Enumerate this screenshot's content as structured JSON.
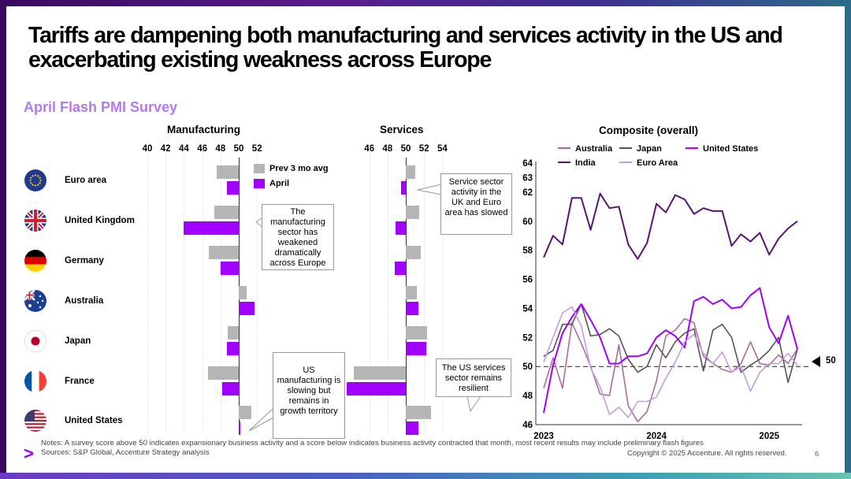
{
  "title": "Tariffs are dampening both manufacturing and services activity in the US and exacerbating existing weakness across Europe",
  "subtitle": "April Flash PMI Survey",
  "panels": {
    "manufacturing": "Manufacturing",
    "services": "Services",
    "composite": "Composite (overall)"
  },
  "legend": {
    "prev": "Prev 3 mo avg",
    "april": "April"
  },
  "colors": {
    "prev": "#b5b5b5",
    "april": "#a100ff",
    "brand": "#a100ff"
  },
  "countries": [
    {
      "name": "Euro area",
      "flag": "eu-flag-icon"
    },
    {
      "name": "United Kingdom",
      "flag": "uk-flag-icon"
    },
    {
      "name": "Germany",
      "flag": "germany-flag-icon"
    },
    {
      "name": "Australia",
      "flag": "australia-flag-icon"
    },
    {
      "name": "Japan",
      "flag": "japan-flag-icon"
    },
    {
      "name": "France",
      "flag": "france-flag-icon"
    },
    {
      "name": "United States",
      "flag": "us-flag-icon"
    }
  ],
  "callouts": {
    "manufacturing_europe": "The manufacturing sector has weakened dramatically across Europe",
    "manufacturing_us": "US manufacturing is slowing but remains in growth territory",
    "services_europe": "Service sector activity in the UK and Euro area has slowed",
    "services_us": "The US services sector remains resilient"
  },
  "marker_50": "50",
  "notes": "Notes: A survey score above 50 indicates expansionary business activity and a score below indicates business activity contracted that month, most recent results may include preliminary flash figures",
  "sources": "Sources: S&P Global, Accenture Strategy analysis",
  "copyright": "Copyright © 2025 Accenture. All rights reserved.",
  "page_number": "6",
  "chart_data": [
    {
      "type": "bar",
      "title": "Manufacturing",
      "orientation": "horizontal",
      "baseline": 50,
      "ticks": [
        40,
        42,
        44,
        46,
        48,
        50,
        52
      ],
      "categories": [
        "Euro area",
        "United Kingdom",
        "Germany",
        "Australia",
        "Japan",
        "France",
        "United States"
      ],
      "series": [
        {
          "name": "Prev 3 mo avg",
          "values": [
            47.6,
            47.3,
            46.7,
            50.9,
            48.8,
            46.6,
            51.4
          ]
        },
        {
          "name": "April",
          "values": [
            48.7,
            44.0,
            48.0,
            51.7,
            48.7,
            48.2,
            50.2
          ]
        }
      ]
    },
    {
      "type": "bar",
      "title": "Services",
      "orientation": "horizontal",
      "baseline": 50,
      "ticks": [
        46,
        48,
        50,
        52,
        54
      ],
      "categories": [
        "Euro area",
        "United Kingdom",
        "Germany",
        "Australia",
        "Japan",
        "France",
        "United States"
      ],
      "series": [
        {
          "name": "Prev 3 mo avg",
          "values": [
            51.0,
            51.5,
            51.6,
            51.2,
            52.3,
            44.3,
            52.8
          ]
        },
        {
          "name": "April",
          "values": [
            49.5,
            48.9,
            48.8,
            51.4,
            52.2,
            43.5,
            51.4
          ]
        }
      ]
    },
    {
      "type": "line",
      "title": "Composite (overall)",
      "x": [
        "2023-01",
        "2023-02",
        "2023-03",
        "2023-04",
        "2023-05",
        "2023-06",
        "2023-07",
        "2023-08",
        "2023-09",
        "2023-10",
        "2023-11",
        "2023-12",
        "2024-01",
        "2024-02",
        "2024-03",
        "2024-04",
        "2024-05",
        "2024-06",
        "2024-07",
        "2024-08",
        "2024-09",
        "2024-10",
        "2024-11",
        "2024-12",
        "2025-01",
        "2025-02",
        "2025-03",
        "2025-04"
      ],
      "xticks": [
        "2023",
        "2024",
        "2025"
      ],
      "ylim": [
        46,
        64
      ],
      "yticks": [
        46,
        48,
        50,
        52,
        54,
        56,
        58,
        60,
        62,
        63,
        64
      ],
      "reference_line": 50,
      "series": [
        {
          "name": "Australia",
          "color": "#b06aa0",
          "values": [
            48.5,
            50.6,
            48.5,
            53.0,
            51.6,
            50.0,
            48.1,
            48.0,
            51.5,
            47.3,
            46.2,
            46.9,
            49.0,
            52.1,
            52.5,
            53.3,
            53.0,
            50.7,
            50.2,
            49.8,
            49.6,
            50.2,
            51.7,
            50.2,
            50.1,
            50.8,
            50.2,
            51.2
          ]
        },
        {
          "name": "Japan",
          "color": "#555555",
          "values": [
            50.7,
            51.1,
            52.9,
            52.9,
            54.3,
            52.1,
            52.2,
            52.6,
            52.1,
            50.5,
            49.6,
            50.0,
            51.5,
            50.6,
            51.7,
            52.3,
            52.6,
            49.7,
            52.5,
            52.9,
            52.0,
            49.6,
            50.1,
            50.5,
            51.1,
            52.0,
            48.9,
            51.2
          ]
        },
        {
          "name": "United States",
          "color": "#a100ff",
          "values": [
            46.8,
            50.1,
            52.3,
            53.4,
            54.3,
            53.2,
            52.0,
            50.2,
            50.2,
            50.7,
            50.7,
            50.9,
            52.0,
            52.5,
            52.1,
            51.3,
            54.5,
            54.8,
            54.3,
            54.6,
            54.0,
            54.1,
            54.9,
            55.4,
            52.7,
            51.6,
            53.5,
            51.2
          ]
        },
        {
          "name": "India",
          "color": "#5a1275",
          "values": [
            57.5,
            59.0,
            58.4,
            61.6,
            61.6,
            59.4,
            61.9,
            60.9,
            61.0,
            58.4,
            57.4,
            58.5,
            61.2,
            60.6,
            61.8,
            61.5,
            60.5,
            60.9,
            60.7,
            60.7,
            58.3,
            59.1,
            58.6,
            59.2,
            57.7,
            58.8,
            59.5,
            60.0
          ]
        },
        {
          "name": "Euro Area",
          "color": "#c79ae8",
          "values": [
            50.3,
            52.0,
            53.7,
            54.1,
            52.8,
            49.9,
            48.6,
            46.7,
            47.2,
            46.5,
            47.6,
            47.6,
            47.9,
            49.2,
            50.3,
            51.7,
            52.2,
            50.9,
            50.2,
            51.0,
            49.6,
            50.0,
            48.3,
            49.6,
            50.2,
            50.2,
            50.9,
            50.1
          ]
        }
      ]
    }
  ]
}
